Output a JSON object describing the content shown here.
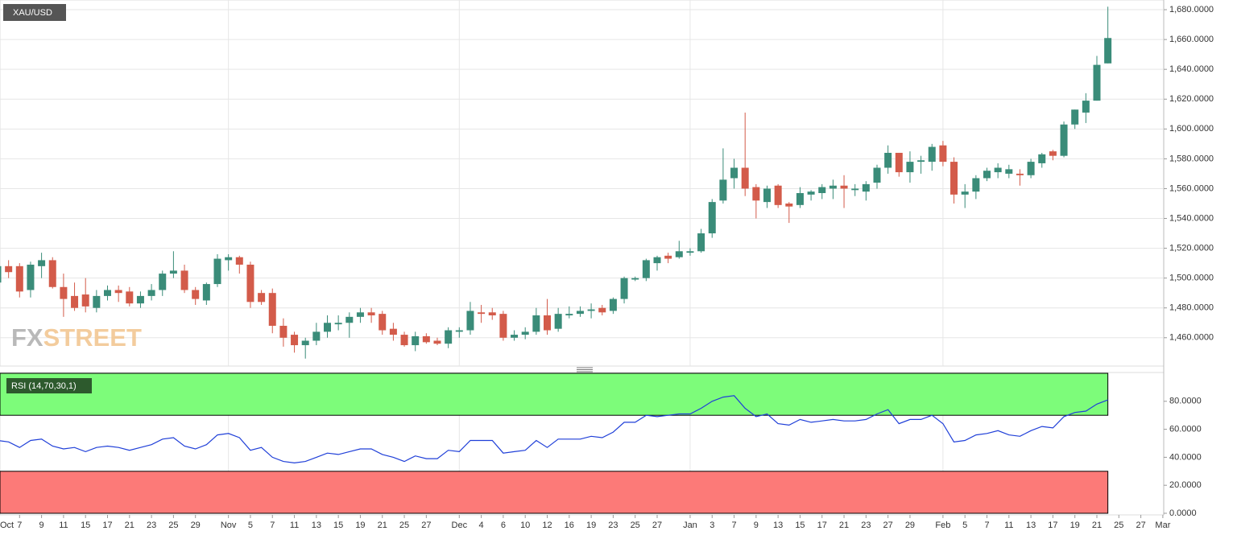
{
  "chart_data": [
    {
      "type": "candlestick",
      "title": "XAU/USD",
      "watermark": [
        "FX",
        "STREET"
      ],
      "categories": [
        "Oct",
        null,
        "7",
        null,
        "9",
        null,
        "11",
        null,
        "15",
        null,
        "17",
        null,
        "21",
        null,
        "23",
        null,
        "25",
        null,
        "29",
        null,
        null,
        "Nov",
        null,
        "5",
        null,
        "7",
        null,
        "11",
        null,
        "13",
        null,
        "15",
        null,
        "19",
        null,
        "21",
        null,
        "25",
        null,
        "27",
        null,
        null,
        "Dec",
        null,
        "4",
        null,
        "6",
        null,
        "10",
        null,
        "12",
        null,
        "16",
        null,
        "19",
        null,
        "23",
        null,
        "25",
        null,
        "27",
        null,
        null,
        "Jan",
        null,
        "3",
        null,
        "7",
        null,
        "9",
        null,
        "13",
        null,
        "15",
        null,
        "17",
        null,
        "21",
        null,
        "23",
        null,
        "27",
        null,
        "29",
        null,
        null,
        "Feb",
        null,
        "5",
        null,
        "7",
        null,
        "11",
        null,
        "13",
        null,
        "17",
        null,
        "19",
        null,
        "21",
        null,
        "25",
        null,
        "27",
        null,
        "Mar"
      ],
      "open": [
        1497,
        1508,
        1508,
        1492,
        1508,
        1512,
        1494,
        1488,
        1489,
        1480,
        1488,
        1492,
        1491,
        1483,
        1488,
        1492,
        1503,
        1505,
        1492,
        1485,
        1496,
        1512,
        1514,
        1509,
        1490,
        1490,
        1468,
        1462,
        1455,
        1458,
        1464,
        1469,
        1470,
        1474,
        1477,
        1476,
        1466,
        1462,
        1455,
        1461,
        1458,
        1456,
        1464,
        1465,
        1477,
        1477,
        1476,
        1460,
        1462,
        1464,
        1475,
        1466,
        1475,
        1476,
        1478,
        1480,
        1478,
        1486,
        1499,
        1500,
        1510,
        1515,
        1514,
        1517,
        1518,
        1530,
        1552,
        1567,
        1574,
        1561,
        1551,
        1562,
        1550,
        1549,
        1556,
        1557,
        1560,
        1562,
        1559,
        1558,
        1564,
        1574,
        1584,
        1571,
        1578,
        1578,
        1589,
        1578,
        1556,
        1558,
        1567,
        1571,
        1570,
        1570,
        1569,
        1577,
        1585,
        1582,
        1603,
        1611,
        1619,
        1644,
        null,
        null,
        null,
        null,
        null
      ],
      "high": [
        1520,
        1512,
        1510,
        1511,
        1517,
        1514,
        1503,
        1497,
        1500,
        1492,
        1495,
        1495,
        1494,
        1491,
        1496,
        1505,
        1518,
        1509,
        1494,
        1497,
        1516,
        1516,
        1515,
        1511,
        1492,
        1493,
        1473,
        1464,
        1460,
        1470,
        1475,
        1475,
        1477,
        1480,
        1480,
        1478,
        1470,
        1464,
        1464,
        1463,
        1460,
        1467,
        1467,
        1484,
        1482,
        1480,
        1478,
        1465,
        1467,
        1480,
        1486,
        1480,
        1481,
        1481,
        1483,
        1482,
        1487,
        1501,
        1501,
        1513,
        1515,
        1517,
        1525,
        1520,
        1533,
        1553,
        1587,
        1580,
        1611,
        1563,
        1562,
        1563,
        1551,
        1561,
        1559,
        1563,
        1566,
        1569,
        1563,
        1565,
        1576,
        1589,
        1584,
        1585,
        1582,
        1590,
        1592,
        1581,
        1563,
        1569,
        1574,
        1577,
        1576,
        1573,
        1580,
        1584,
        1586,
        1605,
        1613,
        1624,
        1649,
        1682,
        null,
        null,
        null,
        null,
        null
      ],
      "low": [
        1492,
        1500,
        1487,
        1487,
        1500,
        1493,
        1474,
        1478,
        1477,
        1477,
        1485,
        1484,
        1481,
        1480,
        1485,
        1488,
        1500,
        1490,
        1482,
        1482,
        1494,
        1505,
        1503,
        1480,
        1482,
        1463,
        1454,
        1450,
        1446,
        1455,
        1460,
        1465,
        1460,
        1470,
        1470,
        1462,
        1458,
        1454,
        1451,
        1456,
        1455,
        1453,
        1460,
        1462,
        1470,
        1472,
        1458,
        1458,
        1459,
        1462,
        1462,
        1464,
        1473,
        1474,
        1473,
        1475,
        1476,
        1483,
        1498,
        1498,
        1505,
        1510,
        1513,
        1515,
        1517,
        1527,
        1550,
        1560,
        1555,
        1540,
        1547,
        1547,
        1537,
        1547,
        1552,
        1553,
        1553,
        1547,
        1555,
        1552,
        1560,
        1570,
        1568,
        1564,
        1570,
        1572,
        1575,
        1550,
        1547,
        1553,
        1565,
        1567,
        1567,
        1562,
        1567,
        1574,
        1579,
        1581,
        1600,
        1604,
        1619,
        1644,
        null,
        null,
        null,
        null,
        null
      ],
      "close": [
        1508,
        1504,
        1491,
        1509,
        1512,
        1494,
        1486,
        1480,
        1481,
        1488,
        1492,
        1490,
        1483,
        1488,
        1492,
        1503,
        1505,
        1492,
        1486,
        1496,
        1513,
        1514,
        1509,
        1484,
        1484,
        1468,
        1460,
        1455,
        1458,
        1464,
        1470,
        1470,
        1474,
        1477,
        1475,
        1465,
        1462,
        1455,
        1461,
        1457,
        1456,
        1465,
        1465,
        1478,
        1476,
        1475,
        1460,
        1462,
        1464,
        1475,
        1465,
        1476,
        1476,
        1478,
        1479,
        1477,
        1486,
        1500,
        1500,
        1512,
        1514,
        1513,
        1518,
        1518,
        1530,
        1551,
        1566,
        1574,
        1560,
        1552,
        1560,
        1549,
        1548,
        1557,
        1558,
        1561,
        1562,
        1560,
        1560,
        1563,
        1574,
        1584,
        1571,
        1578,
        1579,
        1588,
        1578,
        1556,
        1558,
        1567,
        1572,
        1574,
        1573,
        1569,
        1578,
        1583,
        1582,
        1603,
        1613,
        1619,
        1643,
        1661,
        null,
        null,
        null,
        null,
        null
      ],
      "up_color": "#3a8c79",
      "down_color": "#d35b4a",
      "ylim": [
        1441,
        1686.5
      ],
      "yticks": [
        {
          "value": 1460,
          "label": "1,460.0000"
        },
        {
          "value": 1480,
          "label": "1,480.0000"
        },
        {
          "value": 1500,
          "label": "1,500.0000"
        },
        {
          "value": 1520,
          "label": "1,520.0000"
        },
        {
          "value": 1540,
          "label": "1,540.0000"
        },
        {
          "value": 1560,
          "label": "1,560.0000"
        },
        {
          "value": 1580,
          "label": "1,580.0000"
        },
        {
          "value": 1600,
          "label": "1,600.0000"
        },
        {
          "value": 1620,
          "label": "1,620.0000"
        },
        {
          "value": 1640,
          "label": "1,640.0000"
        },
        {
          "value": 1660,
          "label": "1,660.0000"
        },
        {
          "value": 1680,
          "label": "1,680.0000"
        }
      ],
      "grid": true
    },
    {
      "type": "line",
      "title": "RSI (14,70,30,1)",
      "values": [
        52,
        51,
        47,
        52,
        53,
        48,
        46,
        47,
        44,
        47,
        48,
        47,
        45,
        47,
        49,
        53,
        54,
        48,
        46,
        49,
        56,
        57,
        54,
        45,
        47,
        40,
        37,
        36,
        37,
        40,
        43,
        42,
        44,
        46,
        46,
        42,
        40,
        37,
        41,
        39,
        39,
        45,
        44,
        52,
        52,
        52,
        43,
        44,
        45,
        52,
        47,
        53,
        53,
        53,
        55,
        54,
        58,
        65,
        65,
        70,
        69,
        70,
        71,
        71,
        75,
        80,
        83,
        84,
        75,
        69,
        71,
        64,
        63,
        67,
        65,
        66,
        67,
        66,
        66,
        67,
        71,
        74,
        64,
        67,
        67,
        70,
        64,
        51,
        52,
        56,
        57,
        59,
        56,
        55,
        59,
        62,
        61,
        69,
        72,
        73,
        78,
        81,
        null,
        null,
        null,
        null,
        null
      ],
      "color": "#1f3fd8",
      "ylim": [
        0,
        100
      ],
      "yticks": [
        {
          "value": 0,
          "label": "0.0000"
        },
        {
          "value": 20,
          "label": "20.0000"
        },
        {
          "value": 40,
          "label": "40.0000"
        },
        {
          "value": 60,
          "label": "60.0000"
        },
        {
          "value": 80,
          "label": "80.0000"
        }
      ],
      "bands": [
        {
          "from": 70,
          "to": 100,
          "color": "#7dfc7a"
        },
        {
          "from": 0,
          "to": 30,
          "color": "#fc7a78"
        }
      ]
    }
  ]
}
